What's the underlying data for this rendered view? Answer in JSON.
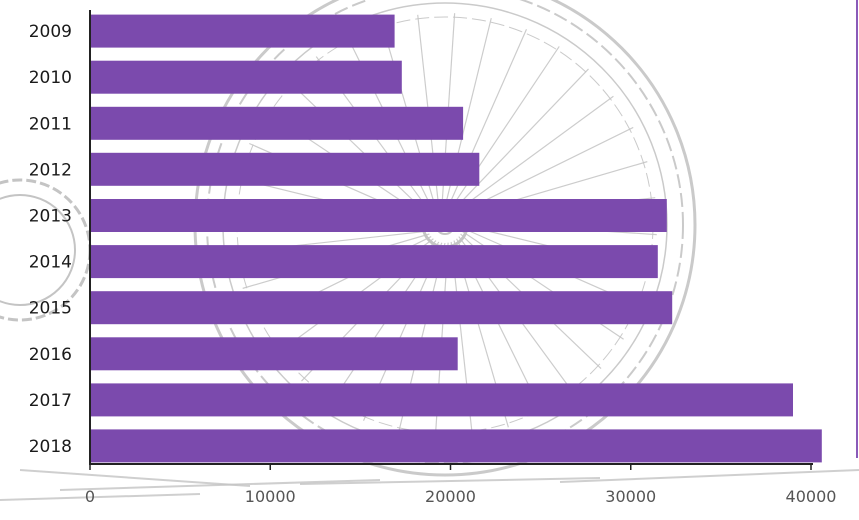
{
  "colors": {
    "bar": "#7b4aad",
    "axis": "#222222",
    "tick_text": "#555555",
    "category_text": "#1a1a1a",
    "frame_accent": "#8a5ab8",
    "background_sketch": "#c4c4c4"
  },
  "background_art": "bicycle-wheel-sketch",
  "chart_data": {
    "type": "bar",
    "orientation": "horizontal",
    "categories": [
      "2009",
      "2010",
      "2011",
      "2012",
      "2013",
      "2014",
      "2015",
      "2016",
      "2017",
      "2018"
    ],
    "values": [
      16900,
      17300,
      20700,
      21600,
      32000,
      31500,
      32300,
      20400,
      39000,
      40600
    ],
    "xlim": [
      0,
      40000
    ],
    "xticks": [
      0,
      10000,
      20000,
      30000,
      40000
    ],
    "xtick_labels": [
      "0",
      "10000",
      "20000",
      "30000",
      "40000"
    ],
    "grid": false,
    "legend": "none"
  }
}
